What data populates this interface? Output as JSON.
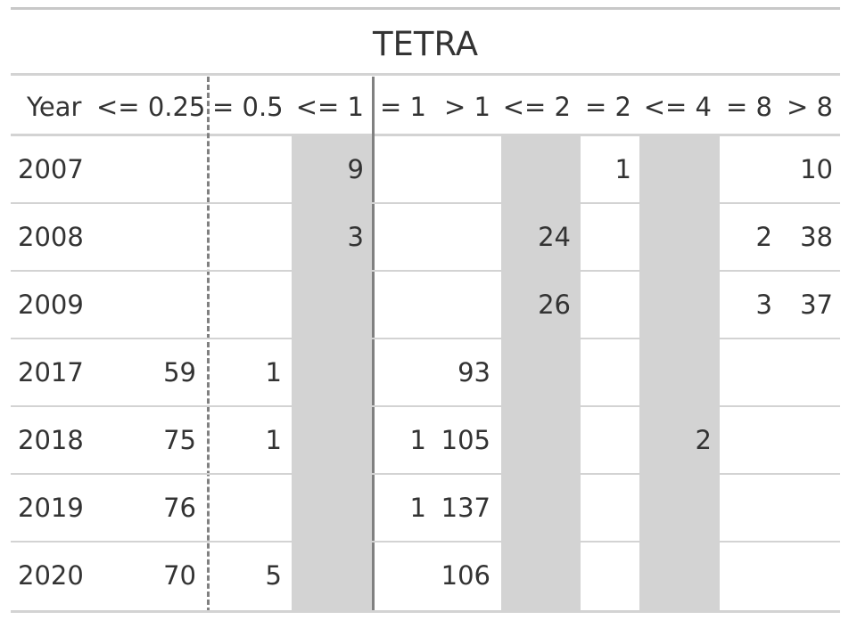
{
  "title": "TETRA",
  "header": {
    "columns": [
      "Year",
      "<= 0.25",
      "= 0.5",
      "<= 1",
      "= 1",
      "> 1",
      "<= 2",
      "= 2",
      "<= 4",
      "= 8",
      "> 8"
    ]
  },
  "rows": [
    {
      "year": "2007",
      "cells": [
        "",
        "",
        "9",
        "",
        "",
        "",
        "1",
        "",
        "",
        "10"
      ]
    },
    {
      "year": "2008",
      "cells": [
        "",
        "",
        "3",
        "",
        "",
        "24",
        "",
        "",
        "2",
        "38"
      ]
    },
    {
      "year": "2009",
      "cells": [
        "",
        "",
        "",
        "",
        "",
        "26",
        "",
        "",
        "3",
        "37"
      ]
    },
    {
      "year": "2017",
      "cells": [
        "59",
        "1",
        "",
        "",
        "93",
        "",
        "",
        "",
        "",
        ""
      ]
    },
    {
      "year": "2018",
      "cells": [
        "75",
        "1",
        "",
        "1",
        "105",
        "",
        "",
        "2",
        "",
        ""
      ]
    },
    {
      "year": "2019",
      "cells": [
        "76",
        "",
        "",
        "1",
        "137",
        "",
        "",
        "",
        "",
        ""
      ]
    },
    {
      "year": "2020",
      "cells": [
        "70",
        "5",
        "",
        "",
        "106",
        "",
        "",
        "",
        "",
        ""
      ]
    }
  ],
  "colors": {
    "text": "#333333",
    "shaded_column": "#d3d3d3",
    "rule": "#d3d3d3",
    "divider": "#808080"
  }
}
